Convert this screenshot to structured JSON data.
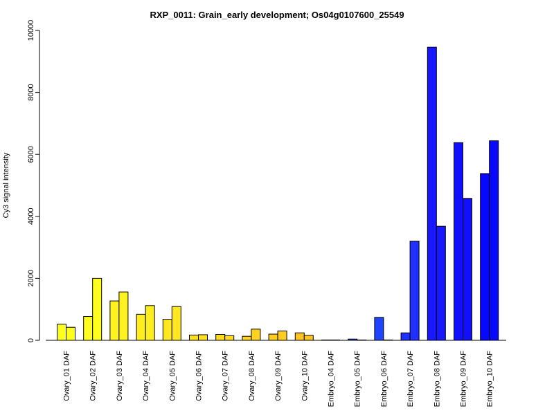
{
  "chart_data": {
    "type": "bar",
    "title": "RXP_0011: Grain_early development; Os04g0107600_25549",
    "xlabel": "",
    "ylabel": "Cy3 signal intensity",
    "ylim": [
      0,
      10000
    ],
    "yticks": [
      0,
      2000,
      4000,
      6000,
      8000,
      10000
    ],
    "grid": false,
    "legend": "none",
    "categories": [
      "Ovary_01 DAF",
      "Ovary_02 DAF",
      "Ovary_03 DAF",
      "Ovary_04 DAF",
      "Ovary_05 DAF",
      "Ovary_06 DAF",
      "Ovary_07 DAF",
      "Ovary_08 DAF",
      "Ovary_09 DAF",
      "Ovary_10 DAF",
      "Embryo_04 DAF",
      "Embryo_05 DAF",
      "Embryo_06 DAF",
      "Embryo_07 DAF",
      "Embryo_08 DAF",
      "Embryo_09 DAF",
      "Embryo_10 DAF"
    ],
    "colors": [
      "#ffff1f",
      "#ffff1f",
      "#fff21f",
      "#ffee1f",
      "#ffe81f",
      "#ffe01f",
      "#ffda1f",
      "#ffd21f",
      "#ffcc1f",
      "#ffc41f",
      "#1f3fff",
      "#1f44ff",
      "#1f44ff",
      "#1f30ff",
      "#1818ff",
      "#1010ff",
      "#0808ff"
    ],
    "series": [
      {
        "values": [
          520,
          770,
          1270,
          840,
          680,
          170,
          190,
          130,
          200,
          240,
          10,
          40,
          740,
          240,
          9460,
          6380,
          5380
        ]
      },
      {
        "values": [
          420,
          2000,
          1560,
          1120,
          1090,
          180,
          150,
          360,
          300,
          160,
          10,
          10,
          10,
          3200,
          3680,
          4580,
          6440
        ]
      }
    ]
  }
}
